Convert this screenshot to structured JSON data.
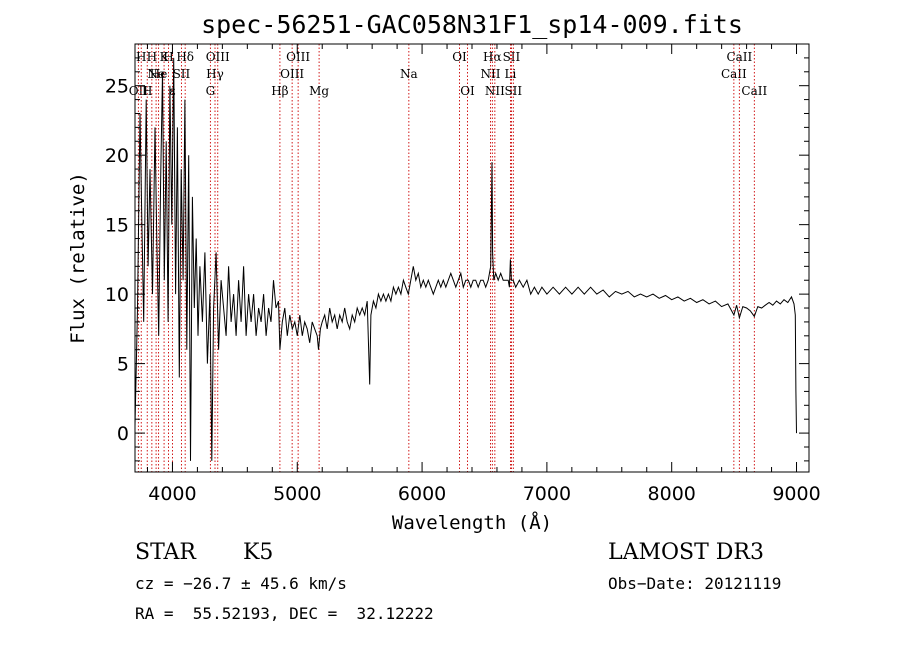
{
  "chart_data": {
    "type": "line",
    "title": "spec-56251-GAC058N31F1_sp14-009.fits",
    "xlabel": "Wavelength (Å)",
    "ylabel": "Flux (relative)",
    "xlim": [
      3700,
      9100
    ],
    "ylim": [
      -2.8,
      28
    ],
    "x_ticks": [
      4000,
      5000,
      6000,
      7000,
      8000,
      9000
    ],
    "y_ticks": [
      0,
      5,
      10,
      15,
      20,
      25
    ],
    "line_color": "#000000",
    "marker_color": "#cc0000",
    "series": [
      {
        "points": [
          [
            3700,
            0.5
          ],
          [
            3720,
            9
          ],
          [
            3740,
            23
          ],
          [
            3755,
            15
          ],
          [
            3770,
            8
          ],
          [
            3790,
            24
          ],
          [
            3805,
            12
          ],
          [
            3820,
            19
          ],
          [
            3840,
            10
          ],
          [
            3860,
            22
          ],
          [
            3875,
            14
          ],
          [
            3890,
            7
          ],
          [
            3905,
            18
          ],
          [
            3920,
            26
          ],
          [
            3935,
            11
          ],
          [
            3950,
            21
          ],
          [
            3965,
            8
          ],
          [
            3980,
            25
          ],
          [
            3995,
            15
          ],
          [
            4010,
            27
          ],
          [
            4025,
            10
          ],
          [
            4040,
            22
          ],
          [
            4055,
            4
          ],
          [
            4070,
            19
          ],
          [
            4085,
            11
          ],
          [
            4100,
            24
          ],
          [
            4115,
            6
          ],
          [
            4130,
            20
          ],
          [
            4145,
            -2
          ],
          [
            4160,
            17
          ],
          [
            4175,
            9
          ],
          [
            4190,
            14
          ],
          [
            4205,
            7
          ],
          [
            4220,
            12
          ],
          [
            4240,
            8
          ],
          [
            4260,
            13
          ],
          [
            4280,
            5
          ],
          [
            4300,
            10
          ],
          [
            4315,
            -2
          ],
          [
            4330,
            9
          ],
          [
            4350,
            13
          ],
          [
            4370,
            6
          ],
          [
            4390,
            11
          ],
          [
            4410,
            9
          ],
          [
            4430,
            7
          ],
          [
            4450,
            12
          ],
          [
            4470,
            8
          ],
          [
            4490,
            10
          ],
          [
            4510,
            7
          ],
          [
            4530,
            11
          ],
          [
            4550,
            8
          ],
          [
            4570,
            12
          ],
          [
            4590,
            7
          ],
          [
            4610,
            10
          ],
          [
            4630,
            8
          ],
          [
            4650,
            10
          ],
          [
            4670,
            7
          ],
          [
            4690,
            9
          ],
          [
            4710,
            8
          ],
          [
            4730,
            10
          ],
          [
            4750,
            7
          ],
          [
            4770,
            9
          ],
          [
            4790,
            8
          ],
          [
            4810,
            11
          ],
          [
            4830,
            9
          ],
          [
            4850,
            9.5
          ],
          [
            4861,
            6
          ],
          [
            4880,
            8
          ],
          [
            4900,
            9
          ],
          [
            4920,
            7
          ],
          [
            4940,
            8.5
          ],
          [
            4960,
            7.5
          ],
          [
            4980,
            8
          ],
          [
            5000,
            7
          ],
          [
            5020,
            8.5
          ],
          [
            5040,
            7
          ],
          [
            5060,
            8
          ],
          [
            5080,
            7.5
          ],
          [
            5100,
            6.5
          ],
          [
            5120,
            8
          ],
          [
            5140,
            7.5
          ],
          [
            5160,
            7
          ],
          [
            5170,
            6
          ],
          [
            5185,
            7.5
          ],
          [
            5200,
            8
          ],
          [
            5220,
            8.5
          ],
          [
            5240,
            7.5
          ],
          [
            5260,
            9
          ],
          [
            5280,
            8
          ],
          [
            5300,
            8.5
          ],
          [
            5320,
            7.5
          ],
          [
            5340,
            8.5
          ],
          [
            5360,
            8
          ],
          [
            5380,
            9
          ],
          [
            5400,
            8
          ],
          [
            5420,
            7.5
          ],
          [
            5440,
            8.5
          ],
          [
            5460,
            8
          ],
          [
            5480,
            9
          ],
          [
            5500,
            8.5
          ],
          [
            5520,
            9
          ],
          [
            5540,
            8.5
          ],
          [
            5560,
            9.5
          ],
          [
            5580,
            3.5
          ],
          [
            5590,
            8.5
          ],
          [
            5610,
            9.5
          ],
          [
            5630,
            9
          ],
          [
            5650,
            10
          ],
          [
            5670,
            9.5
          ],
          [
            5690,
            10
          ],
          [
            5710,
            9.5
          ],
          [
            5730,
            10
          ],
          [
            5750,
            9.5
          ],
          [
            5770,
            10.5
          ],
          [
            5790,
            10
          ],
          [
            5810,
            10.5
          ],
          [
            5830,
            10
          ],
          [
            5850,
            11
          ],
          [
            5870,
            10.5
          ],
          [
            5890,
            10
          ],
          [
            5910,
            11
          ],
          [
            5930,
            12
          ],
          [
            5950,
            11
          ],
          [
            5970,
            11.5
          ],
          [
            5990,
            10.5
          ],
          [
            6010,
            11
          ],
          [
            6030,
            10.5
          ],
          [
            6050,
            11
          ],
          [
            6070,
            10.5
          ],
          [
            6090,
            10
          ],
          [
            6110,
            10.5
          ],
          [
            6130,
            11
          ],
          [
            6150,
            10.5
          ],
          [
            6170,
            11
          ],
          [
            6190,
            10.5
          ],
          [
            6210,
            11
          ],
          [
            6230,
            11.5
          ],
          [
            6250,
            11
          ],
          [
            6270,
            10.5
          ],
          [
            6290,
            11
          ],
          [
            6310,
            11.5
          ],
          [
            6330,
            10.5
          ],
          [
            6350,
            11
          ],
          [
            6370,
            11
          ],
          [
            6390,
            10.5
          ],
          [
            6410,
            11
          ],
          [
            6430,
            11
          ],
          [
            6450,
            10.5
          ],
          [
            6470,
            11
          ],
          [
            6490,
            11
          ],
          [
            6510,
            10.5
          ],
          [
            6530,
            11
          ],
          [
            6550,
            12
          ],
          [
            6560,
            19.5
          ],
          [
            6565,
            13
          ],
          [
            6575,
            11
          ],
          [
            6590,
            11.5
          ],
          [
            6610,
            11
          ],
          [
            6630,
            11.5
          ],
          [
            6650,
            11
          ],
          [
            6670,
            11
          ],
          [
            6690,
            11
          ],
          [
            6700,
            10.5
          ],
          [
            6708,
            12.5
          ],
          [
            6716,
            11
          ],
          [
            6730,
            11
          ],
          [
            6750,
            10.5
          ],
          [
            6780,
            11
          ],
          [
            6810,
            10.5
          ],
          [
            6840,
            11
          ],
          [
            6870,
            10
          ],
          [
            6900,
            10.5
          ],
          [
            6930,
            10
          ],
          [
            6960,
            10.5
          ],
          [
            7000,
            10
          ],
          [
            7050,
            10.5
          ],
          [
            7100,
            10
          ],
          [
            7150,
            10.5
          ],
          [
            7200,
            10
          ],
          [
            7250,
            10.5
          ],
          [
            7300,
            10
          ],
          [
            7350,
            10.5
          ],
          [
            7400,
            10
          ],
          [
            7450,
            10.3
          ],
          [
            7500,
            9.8
          ],
          [
            7550,
            10.2
          ],
          [
            7600,
            10
          ],
          [
            7650,
            10.2
          ],
          [
            7700,
            9.8
          ],
          [
            7750,
            10
          ],
          [
            7800,
            9.8
          ],
          [
            7850,
            10
          ],
          [
            7900,
            9.7
          ],
          [
            7950,
            9.9
          ],
          [
            8000,
            9.6
          ],
          [
            8050,
            9.8
          ],
          [
            8100,
            9.5
          ],
          [
            8150,
            9.7
          ],
          [
            8200,
            9.4
          ],
          [
            8250,
            9.6
          ],
          [
            8300,
            9.3
          ],
          [
            8350,
            9.5
          ],
          [
            8400,
            9.1
          ],
          [
            8450,
            9.3
          ],
          [
            8498,
            8.5
          ],
          [
            8520,
            9.2
          ],
          [
            8542,
            8.3
          ],
          [
            8570,
            9.1
          ],
          [
            8600,
            9
          ],
          [
            8630,
            8.8
          ],
          [
            8662,
            8.4
          ],
          [
            8690,
            9.1
          ],
          [
            8720,
            9
          ],
          [
            8750,
            9.2
          ],
          [
            8780,
            9.4
          ],
          [
            8810,
            9.2
          ],
          [
            8840,
            9.5
          ],
          [
            8870,
            9.3
          ],
          [
            8900,
            9.6
          ],
          [
            8930,
            9.4
          ],
          [
            8960,
            9.8
          ],
          [
            8980,
            9.3
          ],
          [
            8990,
            8.5
          ],
          [
            8995,
            3
          ],
          [
            9000,
            0
          ]
        ]
      }
    ],
    "markers": [
      {
        "x": 3727,
        "label": "OII",
        "row": 2
      },
      {
        "x": 3750,
        "label": "H",
        "row": 0
      },
      {
        "x": 3798,
        "label": "H",
        "row": 2
      },
      {
        "x": 3835,
        "label": "H",
        "row": 0
      },
      {
        "x": 3869,
        "label": "Ne",
        "row": 1
      },
      {
        "x": 3889,
        "label": "He",
        "row": 1
      },
      {
        "x": 3933,
        "label": "K",
        "row": 0
      },
      {
        "x": 3968,
        "label": "H",
        "row": 0
      },
      {
        "x": 4000,
        "label": "ε",
        "row": 2
      },
      {
        "x": 4072,
        "label": "SII",
        "row": 1
      },
      {
        "x": 4102,
        "label": "Hδ",
        "row": 0
      },
      {
        "x": 4304,
        "label": "G",
        "row": 2
      },
      {
        "x": 4341,
        "label": "Hγ",
        "row": 1
      },
      {
        "x": 4363,
        "label": "OIII",
        "row": 0
      },
      {
        "x": 4861,
        "label": "Hβ",
        "row": 2
      },
      {
        "x": 4959,
        "label": "OIII",
        "row": 1
      },
      {
        "x": 5007,
        "label": "OIII",
        "row": 0
      },
      {
        "x": 5175,
        "label": "Mg",
        "row": 2
      },
      {
        "x": 5894,
        "label": "Na",
        "row": 1
      },
      {
        "x": 6300,
        "label": "OI",
        "row": 0
      },
      {
        "x": 6364,
        "label": "OI",
        "row": 2
      },
      {
        "x": 6548,
        "label": "NII",
        "row": 1
      },
      {
        "x": 6563,
        "label": "Hα",
        "row": 0
      },
      {
        "x": 6583,
        "label": "NII",
        "row": 2
      },
      {
        "x": 6708,
        "label": "Li",
        "row": 1
      },
      {
        "x": 6716,
        "label": "SII",
        "row": 0
      },
      {
        "x": 6731,
        "label": "SII",
        "row": 2
      },
      {
        "x": 8498,
        "label": "CaII",
        "row": 1
      },
      {
        "x": 8542,
        "label": "CaII",
        "row": 0
      },
      {
        "x": 8662,
        "label": "CaII",
        "row": 2
      }
    ]
  },
  "info": {
    "class": "STAR",
    "subclass": "K5",
    "redshift": "cz = −26.7 ± 45.6 km/s",
    "coords": "RA =  55.52193, DEC =  32.12222",
    "survey": "LAMOST DR3",
    "obs_date": "Obs−Date: 20121119"
  }
}
